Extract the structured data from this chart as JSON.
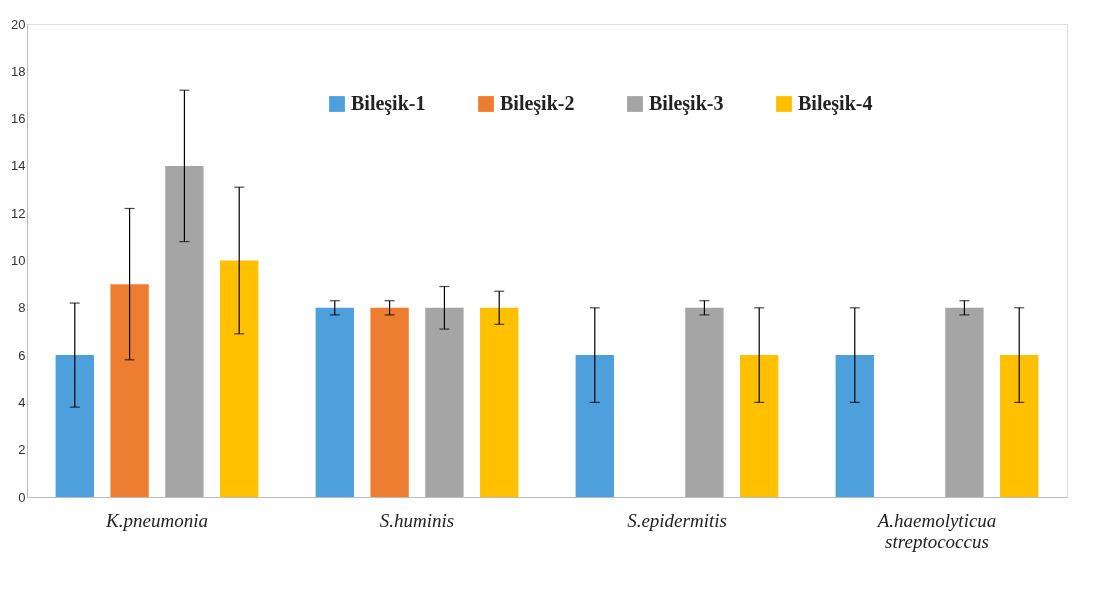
{
  "chart_data": {
    "type": "bar",
    "categories": [
      "K.pneumonia",
      "S.huminis",
      "S.epidermitis",
      "A.haemolyticua streptococcus"
    ],
    "series": [
      {
        "name": "Bileşik-1",
        "color": "#4ea0dd",
        "values": [
          6,
          8,
          6,
          6
        ],
        "errors": [
          2.2,
          0.3,
          2,
          2
        ]
      },
      {
        "name": "Bileşik-2",
        "color": "#ed7d31",
        "values": [
          9,
          8,
          null,
          null
        ],
        "errors": [
          3.2,
          0.3,
          null,
          null
        ]
      },
      {
        "name": "Bileşik-3",
        "color": "#a5a5a5",
        "values": [
          14,
          8,
          8,
          8
        ],
        "errors": [
          3.2,
          0.9,
          0.3,
          0.3
        ]
      },
      {
        "name": "Bileşik-4",
        "color": "#ffc000",
        "values": [
          10,
          8,
          6,
          6
        ],
        "errors": [
          3.1,
          0.7,
          2,
          2
        ]
      }
    ],
    "ylim": [
      0,
      20
    ],
    "yticks": [
      0,
      2,
      4,
      6,
      8,
      10,
      12,
      14,
      16,
      18,
      20
    ],
    "grid": false,
    "legend": "top"
  }
}
